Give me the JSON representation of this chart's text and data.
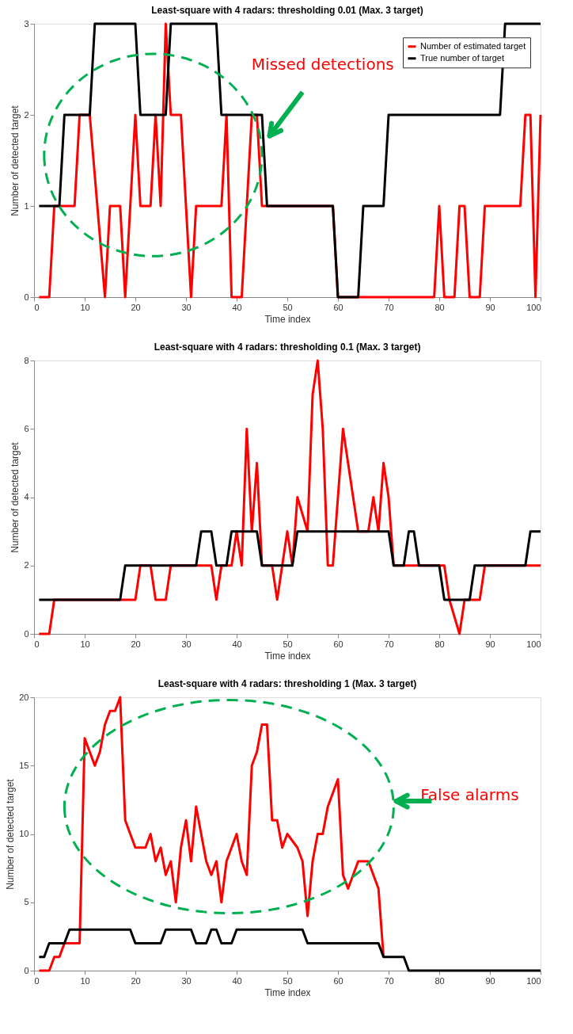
{
  "chart_data": [
    {
      "type": "line",
      "title": "Least-square with 4 radars: thresholding 0.01 (Max. 3 target)",
      "xlabel": "Time index",
      "ylabel": "Number of detected target",
      "xlim": [
        0,
        100
      ],
      "xticks": [
        0,
        10,
        20,
        30,
        40,
        50,
        60,
        70,
        80,
        90,
        100
      ],
      "ylim": [
        0,
        3
      ],
      "yticks": [
        0,
        1,
        2,
        3
      ],
      "legend": "top right",
      "annotations": [
        "Missed detections"
      ],
      "series": [
        {
          "name": "Number of estimated target",
          "color": "#ff0000",
          "x": [
            1,
            3,
            4,
            8,
            9,
            11,
            14,
            15,
            17,
            18,
            20,
            21,
            23,
            24,
            25,
            26,
            27,
            29,
            31,
            32,
            37,
            38,
            39,
            41,
            43,
            44,
            45,
            46,
            59,
            60,
            64,
            79,
            80,
            81,
            83,
            84,
            85,
            86,
            88,
            89,
            96,
            97,
            98,
            99,
            100
          ],
          "values": [
            0,
            0,
            1,
            1,
            2,
            2,
            0,
            1,
            1,
            0,
            2,
            1,
            1,
            2,
            1,
            3,
            2,
            2,
            0,
            1,
            1,
            2,
            0,
            0,
            2,
            2,
            1,
            1,
            1,
            0,
            0,
            0,
            1,
            0,
            0,
            1,
            1,
            0,
            0,
            1,
            1,
            2,
            2,
            0,
            2
          ]
        },
        {
          "name": "True number of target",
          "color": "#000000",
          "x": [
            1,
            5,
            6,
            11,
            12,
            20,
            21,
            26,
            27,
            36,
            37,
            45,
            46,
            59,
            60,
            64,
            65,
            69,
            70,
            92,
            93,
            100
          ],
          "values": [
            1,
            1,
            2,
            2,
            3,
            3,
            2,
            2,
            3,
            3,
            2,
            2,
            1,
            1,
            0,
            0,
            1,
            1,
            2,
            2,
            3,
            3
          ]
        }
      ]
    },
    {
      "type": "line",
      "title": "Least-square with 4 radars: thresholding 0.1 (Max. 3 target)",
      "xlabel": "Time index",
      "ylabel": "Number of detected target",
      "xlim": [
        0,
        100
      ],
      "xticks": [
        0,
        10,
        20,
        30,
        40,
        50,
        60,
        70,
        80,
        90,
        100
      ],
      "ylim": [
        0,
        8
      ],
      "yticks": [
        0,
        2,
        4,
        6,
        8
      ],
      "legend": "top right",
      "series": [
        {
          "name": "Number of estimated target",
          "color": "#ff0000",
          "x": [
            1,
            3,
            4,
            20,
            21,
            23,
            24,
            26,
            27,
            35,
            36,
            37,
            39,
            40,
            41,
            42,
            43,
            44,
            45,
            47,
            48,
            49,
            50,
            51,
            52,
            54,
            55,
            56,
            57,
            58,
            59,
            61,
            64,
            66,
            67,
            68,
            69,
            70,
            71,
            81,
            82,
            84,
            85,
            88,
            89,
            100
          ],
          "values": [
            0,
            0,
            1,
            1,
            2,
            2,
            1,
            1,
            2,
            2,
            1,
            2,
            2,
            3,
            2,
            6,
            3,
            5,
            2,
            2,
            1,
            2,
            3,
            2,
            4,
            3,
            7,
            8,
            6,
            2,
            2,
            6,
            3,
            3,
            4,
            3,
            5,
            4,
            2,
            2,
            1,
            0,
            1,
            1,
            2,
            2
          ]
        },
        {
          "name": "True number of target",
          "color": "#000000",
          "x": [
            1,
            17,
            18,
            32,
            33,
            35,
            36,
            38,
            39,
            44,
            45,
            51,
            52,
            70,
            71,
            73,
            74,
            75,
            76,
            80,
            81,
            86,
            87,
            97,
            98,
            100
          ],
          "values": [
            1,
            1,
            2,
            2,
            3,
            3,
            2,
            2,
            3,
            3,
            2,
            2,
            3,
            3,
            2,
            2,
            3,
            3,
            2,
            2,
            1,
            1,
            2,
            2,
            3,
            3
          ]
        }
      ]
    },
    {
      "type": "line",
      "title": "Least-square with 4 radars: thresholding 1 (Max. 3 target)",
      "xlabel": "Time index",
      "ylabel": "Number of detected target",
      "xlim": [
        0,
        100
      ],
      "xticks": [
        0,
        10,
        20,
        30,
        40,
        50,
        60,
        70,
        80,
        90,
        100
      ],
      "ylim": [
        0,
        20
      ],
      "yticks": [
        0,
        5,
        10,
        15,
        20
      ],
      "legend": "top right",
      "annotations": [
        "False alarms"
      ],
      "series": [
        {
          "name": "Number of estimated target",
          "color": "#ff0000",
          "x": [
            1,
            3,
            4,
            5,
            6,
            9,
            10,
            11,
            12,
            13,
            14,
            15,
            16,
            17,
            18,
            20,
            22,
            23,
            24,
            25,
            26,
            27,
            28,
            29,
            30,
            31,
            32,
            34,
            35,
            36,
            37,
            38,
            39,
            40,
            41,
            42,
            43,
            44,
            45,
            46,
            47,
            48,
            49,
            50,
            52,
            53,
            54,
            55,
            56,
            57,
            58,
            60,
            61,
            62,
            64,
            66,
            68,
            69
          ],
          "values": [
            0,
            0,
            1,
            1,
            2,
            2,
            17,
            16,
            15,
            16,
            18,
            19,
            19,
            20,
            11,
            9,
            9,
            10,
            8,
            9,
            7,
            8,
            5,
            9,
            11,
            8,
            12,
            8,
            7,
            8,
            5,
            8,
            9,
            10,
            8,
            7,
            15,
            16,
            18,
            18,
            11,
            11,
            9,
            10,
            9,
            8,
            4,
            8,
            10,
            10,
            12,
            14,
            7,
            6,
            8,
            8,
            6,
            1
          ]
        },
        {
          "name": "True number of target",
          "color": "#000000",
          "x": [
            1,
            2,
            3,
            6,
            7,
            19,
            20,
            25,
            26,
            31,
            32,
            34,
            35,
            36,
            37,
            39,
            40,
            53,
            54,
            68,
            69,
            73,
            74,
            100
          ],
          "values": [
            1,
            1,
            2,
            2,
            3,
            3,
            2,
            2,
            3,
            3,
            2,
            2,
            3,
            3,
            2,
            2,
            3,
            3,
            2,
            2,
            1,
            1,
            0,
            0
          ]
        }
      ]
    }
  ]
}
